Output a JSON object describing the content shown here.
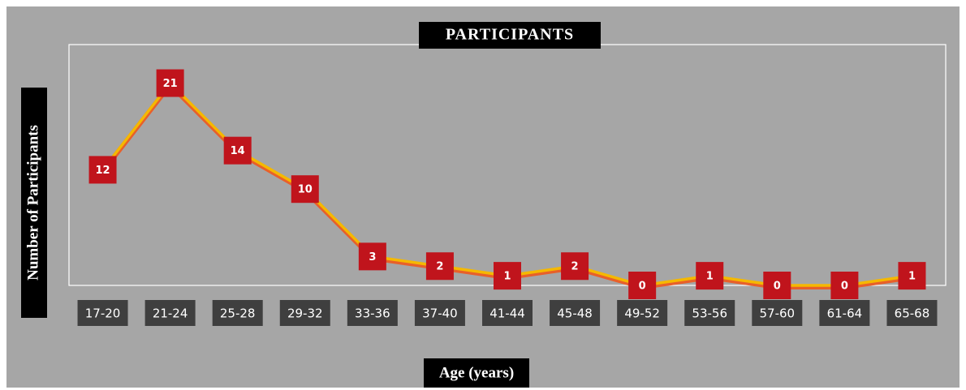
{
  "chart_data": {
    "type": "line",
    "title": "PARTICIPANTS",
    "x_label": "Age (years)",
    "y_label": "Number of Participants",
    "categories": [
      "17-20",
      "21-24",
      "25-28",
      "29-32",
      "33-36",
      "37-40",
      "41-44",
      "45-48",
      "49-52",
      "53-56",
      "57-60",
      "61-64",
      "65-68"
    ],
    "values": [
      12,
      21,
      14,
      10,
      3,
      2,
      1,
      2,
      0,
      1,
      0,
      0,
      1
    ],
    "color": "#f5b800",
    "label_color": "#c0141c",
    "ylim": [
      0,
      25
    ],
    "grid": false
  }
}
